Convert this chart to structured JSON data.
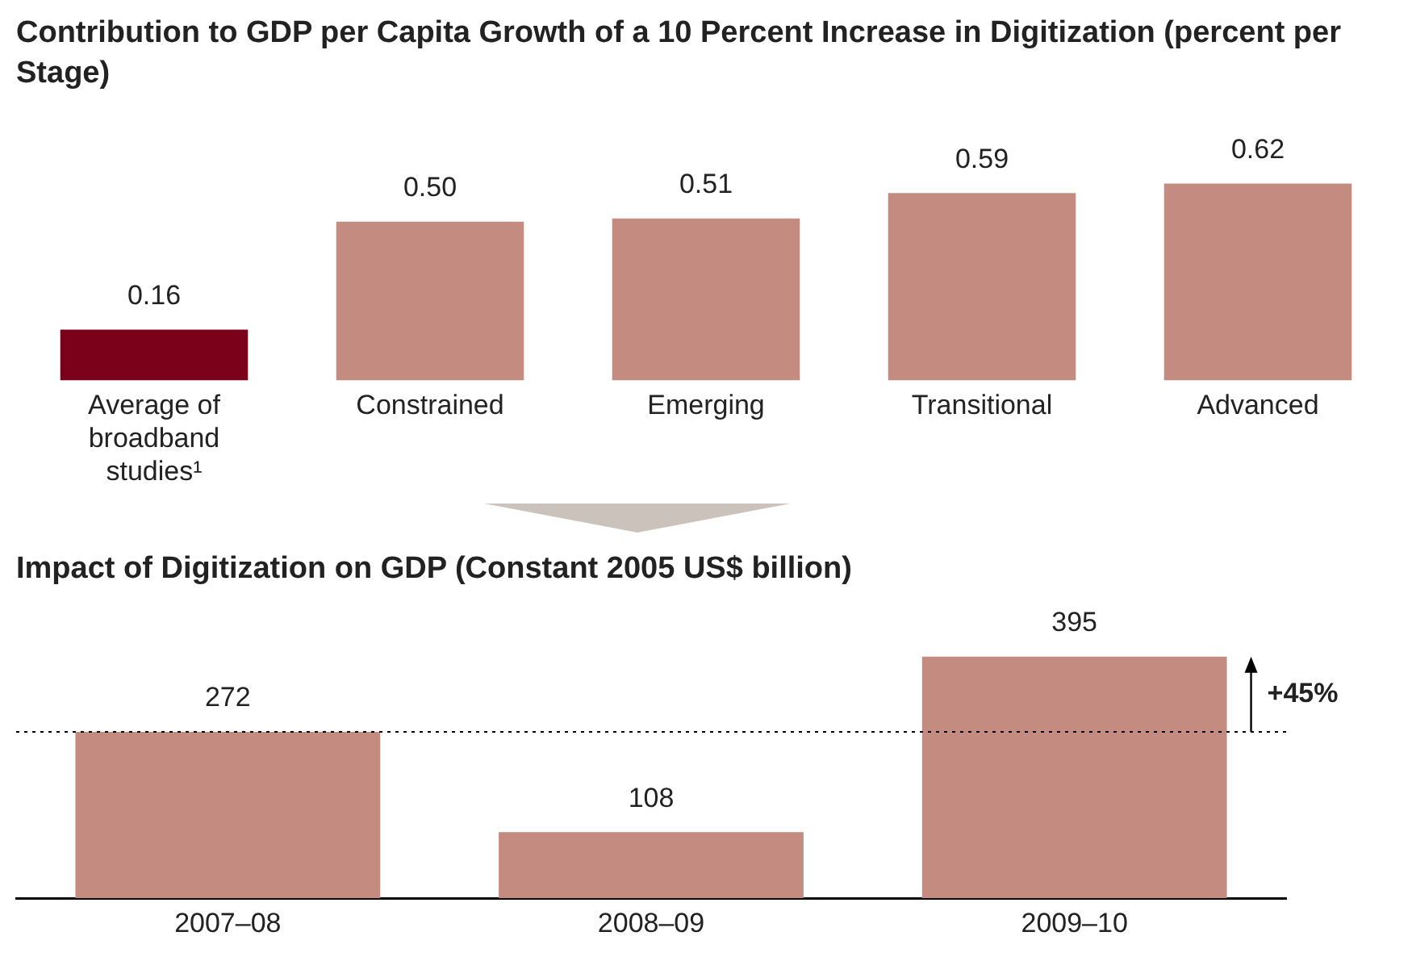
{
  "chart_data": [
    {
      "type": "bar",
      "title": "Contribution to GDP per Capita Growth of a 10 Percent Increase in Digitization (percent per Stage)",
      "categories": [
        "Average of broadband studies¹",
        "Constrained",
        "Emerging",
        "Transitional",
        "Advanced"
      ],
      "values": [
        0.16,
        0.5,
        0.51,
        0.59,
        0.62
      ],
      "colors": [
        "#7b0019",
        "#c48b80",
        "#c48b80",
        "#c48b80",
        "#c48b80"
      ],
      "value_labels": [
        "0.16",
        "0.50",
        "0.51",
        "0.59",
        "0.62"
      ],
      "grid": false,
      "legend": false
    },
    {
      "type": "bar",
      "title": "Impact of Digitization on GDP (Constant 2005 US$ billion)",
      "categories": [
        "2007–08",
        "2008–09",
        "2009–10"
      ],
      "values": [
        272,
        108,
        395
      ],
      "color": "#c48b80",
      "data_labels": true,
      "ref_lines": [
        {
          "axis": "y",
          "value": 272,
          "line_style": "dotted",
          "color": "#000000"
        }
      ],
      "annotations": [
        "+45%"
      ],
      "grid": false,
      "legend": false
    }
  ]
}
